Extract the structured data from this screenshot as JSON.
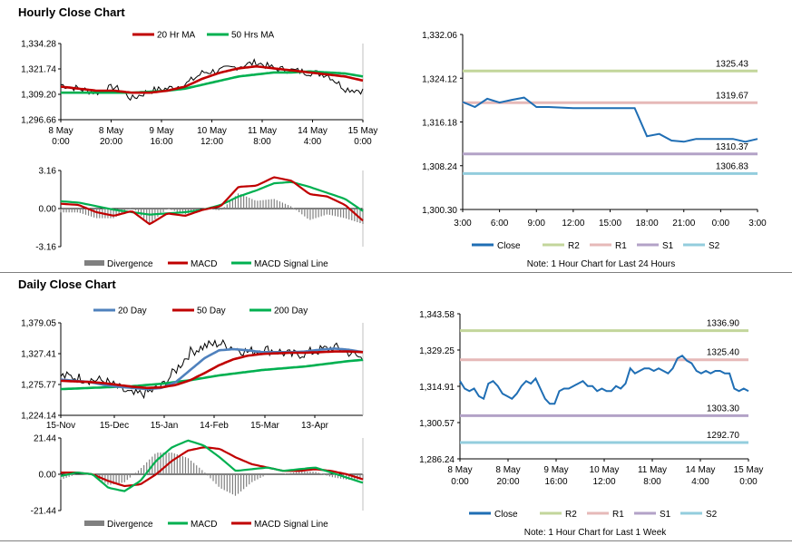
{
  "hourly": {
    "title": "Hourly Close Chart",
    "note": "Note: 1 Hour Chart for Last 24 Hours",
    "price_chart": {
      "type": "line",
      "legend": [
        "20 Hr MA",
        "50 Hrs MA"
      ],
      "colors": {
        "price": "#000000",
        "ma20": "#c00000",
        "ma50": "#00b050"
      },
      "yticks": [
        "1,334.28",
        "1,321.74",
        "1,309.20",
        "1,296.66"
      ],
      "ylim": [
        1296.66,
        1334.28
      ],
      "xticks": [
        [
          "8 May",
          "0:00"
        ],
        [
          "8 May",
          "20:00"
        ],
        [
          "9 May",
          "16:00"
        ],
        [
          "10 May",
          "12:00"
        ],
        [
          "11 May",
          "8:00"
        ],
        [
          "14 May",
          "4:00"
        ],
        [
          "15 May",
          "0:00"
        ]
      ]
    },
    "macd_chart": {
      "type": "bar+line",
      "yticks": [
        "3.16",
        "0.00",
        "-3.16"
      ],
      "ylim": [
        -3.16,
        3.16
      ],
      "legend": [
        "Divergence",
        "MACD",
        "MACD Signal Line"
      ],
      "colors": {
        "divergence": "#808080",
        "macd": "#c00000",
        "signal": "#00b050"
      }
    },
    "levels_chart": {
      "type": "line",
      "yticks": [
        "1,332.06",
        "1,324.12",
        "1,316.18",
        "1,308.24",
        "1,300.30"
      ],
      "ylim": [
        1300.3,
        1332.06
      ],
      "xticks": [
        "3:00",
        "6:00",
        "9:00",
        "12:00",
        "15:00",
        "18:00",
        "21:00",
        "0:00",
        "3:00"
      ],
      "close": [
        1319.8,
        1318.9,
        1320.4,
        1319.7,
        1320.2,
        1320.6,
        1318.9,
        1318.9,
        1318.8,
        1318.7,
        1318.7,
        1318.7,
        1318.7,
        1318.7,
        1318.7,
        1313.6,
        1314.0,
        1312.8,
        1312.6,
        1313.1,
        1313.1,
        1313.1,
        1313.1,
        1312.6,
        1313.1
      ],
      "levels": [
        {
          "name": "R2",
          "value": 1325.43,
          "label": "1325.43",
          "color": "#c3d69b"
        },
        {
          "name": "R1",
          "value": 1319.67,
          "label": "1319.67",
          "color": "#e6b9b8"
        },
        {
          "name": "S1",
          "value": 1310.37,
          "label": "1310.37",
          "color": "#b3a2c7"
        },
        {
          "name": "S2",
          "value": 1306.83,
          "label": "1306.83",
          "color": "#93cddd"
        }
      ],
      "legend": [
        "Close",
        "R2",
        "R1",
        "S1",
        "S2"
      ],
      "close_color": "#1f6eb4"
    }
  },
  "daily": {
    "title": "Daily Close Chart",
    "note": "Note: 1 Hour Chart for Last 1 Week",
    "price_chart": {
      "type": "line",
      "legend": [
        "20 Day",
        "50 Day",
        "200 Day"
      ],
      "colors": {
        "price": "#000000",
        "ma20": "#4f81bd",
        "ma50": "#c00000",
        "ma200": "#00b050"
      },
      "yticks": [
        "1,379.05",
        "1,327.41",
        "1,275.77",
        "1,224.14"
      ],
      "ylim": [
        1224.14,
        1379.05
      ],
      "xticks": [
        "15-Nov",
        "15-Dec",
        "15-Jan",
        "14-Feb",
        "15-Mar",
        "13-Apr"
      ]
    },
    "macd_chart": {
      "type": "bar+line",
      "yticks": [
        "21.44",
        "0.00",
        "-21.44"
      ],
      "ylim": [
        -21.44,
        21.44
      ],
      "legend": [
        "Divergence",
        "MACD",
        "MACD Signal Line"
      ],
      "colors": {
        "divergence": "#808080",
        "macd": "#00b050",
        "signal": "#c00000"
      }
    },
    "levels_chart": {
      "type": "line",
      "yticks": [
        "1,343.58",
        "1,329.25",
        "1,314.91",
        "1,300.57",
        "1,286.24"
      ],
      "ylim": [
        1286.24,
        1343.58
      ],
      "xticks": [
        [
          "8 May",
          "0:00"
        ],
        [
          "8 May",
          "20:00"
        ],
        [
          "9 May",
          "16:00"
        ],
        [
          "10 May",
          "12:00"
        ],
        [
          "11 May",
          "8:00"
        ],
        [
          "14 May",
          "4:00"
        ],
        [
          "15 May",
          "0:00"
        ]
      ],
      "close": [
        1317,
        1314,
        1313,
        1314,
        1311,
        1310,
        1316,
        1317,
        1315,
        1312,
        1311,
        1310,
        1312,
        1315,
        1317,
        1316,
        1318,
        1314,
        1310,
        1308,
        1308,
        1313,
        1314,
        1314,
        1315,
        1316,
        1317,
        1315,
        1315,
        1313,
        1314,
        1313,
        1313,
        1315,
        1314,
        1316,
        1322,
        1320,
        1321,
        1322,
        1322,
        1321,
        1322,
        1321,
        1320,
        1322,
        1326,
        1327,
        1325,
        1324,
        1321,
        1320,
        1321,
        1320,
        1321,
        1321,
        1320,
        1320,
        1314,
        1313,
        1314,
        1313
      ],
      "levels": [
        {
          "name": "R2",
          "value": 1336.9,
          "label": "1336.90",
          "color": "#c3d69b"
        },
        {
          "name": "R1",
          "value": 1325.4,
          "label": "1325.40",
          "color": "#e6b9b8"
        },
        {
          "name": "S1",
          "value": 1303.3,
          "label": "1303.30",
          "color": "#b3a2c7"
        },
        {
          "name": "S2",
          "value": 1292.7,
          "label": "1292.70",
          "color": "#93cddd"
        }
      ],
      "legend": [
        "Close",
        "R2",
        "R1",
        "S1",
        "S2"
      ],
      "close_color": "#1f6eb4"
    }
  }
}
